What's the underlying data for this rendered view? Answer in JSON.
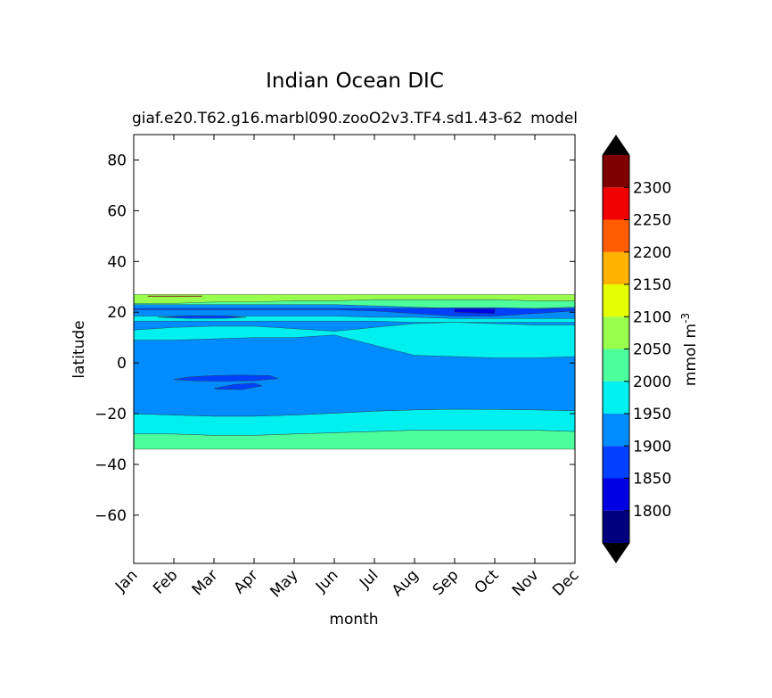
{
  "chart_data": {
    "type": "contour",
    "title": "Indian Ocean DIC",
    "subtitle_left": "giaf.e20.T62.g16.marbl090.zooO2v3.TF4.sd1.43-62",
    "subtitle_right": "model",
    "xlabel": "month",
    "ylabel": "latitude",
    "x_ticks": [
      "Jan",
      "Feb",
      "Mar",
      "Apr",
      "May",
      "Jun",
      "Jul",
      "Aug",
      "Sep",
      "Oct",
      "Nov",
      "Dec"
    ],
    "y_ticks": [
      80,
      60,
      40,
      20,
      0,
      -20,
      -40,
      -60
    ],
    "ylim": [
      -79,
      90
    ],
    "xlim": [
      1,
      12
    ],
    "colorbar": {
      "label": "mmol m",
      "label_sup": "-3",
      "ticks": [
        1800,
        1850,
        1900,
        1950,
        2000,
        2050,
        2100,
        2150,
        2200,
        2250,
        2300
      ],
      "levels": [
        1750,
        1800,
        1850,
        1900,
        1950,
        2000,
        2050,
        2100,
        2150,
        2200,
        2250,
        2300,
        2350
      ],
      "colors": [
        "#00007f",
        "#0000e5",
        "#0040ff",
        "#008cff",
        "#00f0f0",
        "#4dff9c",
        "#99ff4d",
        "#e5ff00",
        "#ffb200",
        "#ff5d00",
        "#f00000",
        "#7f0000"
      ],
      "extend_under_color": "#000000",
      "extend_over_color": "#000000"
    },
    "fields": [
      {
        "level": "2000-2050",
        "color": "#4dff9c",
        "north": [
          -28,
          -28,
          -28.5,
          -28.5,
          -28,
          -27.5,
          -27,
          -26.5,
          -26.5,
          -26.5,
          -26.5,
          -27
        ],
        "south": [
          -34,
          -34,
          -34,
          -34,
          -34,
          -34,
          -34,
          -34,
          -34,
          -34,
          -34,
          -34
        ]
      },
      {
        "level": "1950-2000",
        "color": "#00f0f0",
        "north": [
          -20,
          -20.5,
          -21,
          -21,
          -20.5,
          -19.8,
          -19,
          -18.5,
          -18.2,
          -18.3,
          -18.5,
          -18.8
        ],
        "south": [
          -28,
          -28,
          -28.5,
          -28.5,
          -28,
          -27.5,
          -27,
          -26.5,
          -26.5,
          -26.5,
          -26.5,
          -27
        ]
      },
      {
        "level": "1900-1950",
        "color": "#008cff",
        "north": [
          24,
          24,
          24,
          24,
          24,
          24,
          23.5,
          22.5,
          22,
          22,
          22,
          22.5
        ],
        "south": [
          -20,
          -20.5,
          -21,
          -21,
          -20.5,
          -19.8,
          -19,
          -18.5,
          -18.2,
          -18.3,
          -18.5,
          -18.8
        ]
      },
      {
        "level": "1950-2000",
        "color": "#00f0f0",
        "north": [
          13,
          14,
          14.5,
          14.5,
          13.5,
          12.5,
          14,
          15.5,
          16,
          15.5,
          15,
          15
        ],
        "south": [
          9,
          9,
          9.5,
          10,
          10,
          11,
          7,
          3,
          2.5,
          2,
          2,
          2.5
        ]
      },
      {
        "level": "1950-2000",
        "color": "#00f0f0",
        "north": [
          18.5,
          18.5,
          18.5,
          18.5,
          18.5,
          18.5,
          18,
          18,
          17.5,
          17.5,
          17.5,
          17.5
        ],
        "south": [
          16.5,
          16.5,
          16.5,
          16.5,
          16.5,
          16.5,
          16.5,
          16,
          16,
          16,
          16,
          16
        ]
      },
      {
        "level": "2000-2050",
        "color": "#4dff9c",
        "north": [
          24.5,
          24.5,
          24.5,
          24.5,
          24.5,
          24.5,
          25,
          25,
          25,
          25,
          24.5,
          24.5
        ],
        "south": [
          23,
          23,
          23,
          23,
          23,
          23,
          22.5,
          22,
          21.5,
          21.5,
          21.5,
          22
        ]
      },
      {
        "level": "2050-2100",
        "color": "#99ff4d",
        "north": [
          27,
          27,
          27,
          27,
          27,
          27,
          27,
          27,
          27,
          27,
          27,
          27
        ],
        "south": [
          23.5,
          23.5,
          24,
          24,
          24.5,
          24.5,
          25,
          25,
          25,
          25,
          24.5,
          24.5
        ]
      },
      {
        "level": "1850-1900",
        "color": "#0040ff",
        "north": [
          21.5,
          21.5,
          21.5,
          21.5,
          21.5,
          21.5,
          21.5,
          21.5,
          21.8,
          21.8,
          21.5,
          21.5
        ],
        "south": [
          21,
          21,
          21,
          21,
          21,
          21,
          20.5,
          19.5,
          18.5,
          18.5,
          19.5,
          20.5
        ]
      },
      {
        "level": "1800-1850",
        "color": "#0000e5",
        "north": [
          null,
          null,
          null,
          null,
          null,
          null,
          null,
          null,
          21.3,
          21.3,
          null,
          null
        ],
        "south": [
          null,
          null,
          null,
          null,
          null,
          null,
          null,
          null,
          20,
          19.5,
          null,
          null
        ]
      }
    ],
    "patches": [
      {
        "level": "1850-1900",
        "color": "#0040ff",
        "month": [
          2.0,
          2.4,
          3.0,
          3.6,
          4.4,
          4.6,
          4.0,
          3.2,
          2.5,
          2.0
        ],
        "lat": [
          -6.5,
          -5.5,
          -5,
          -4.8,
          -5,
          -6.2,
          -7,
          -7.2,
          -7,
          -6.5
        ]
      },
      {
        "level": "1850-1900",
        "color": "#0040ff",
        "month": [
          3.0,
          3.5,
          4.0,
          4.2,
          3.7,
          3.1,
          3.0
        ],
        "lat": [
          -10,
          -8.5,
          -8,
          -9,
          -10.5,
          -10.3,
          -10
        ]
      },
      {
        "level": "1850-1900",
        "color": "#0040ff",
        "month": [
          1.6,
          2.4,
          3.2,
          3.8,
          3.3,
          2.4,
          1.6
        ],
        "lat": [
          18,
          18.6,
          18.6,
          18,
          17.6,
          17.5,
          18
        ]
      }
    ]
  }
}
